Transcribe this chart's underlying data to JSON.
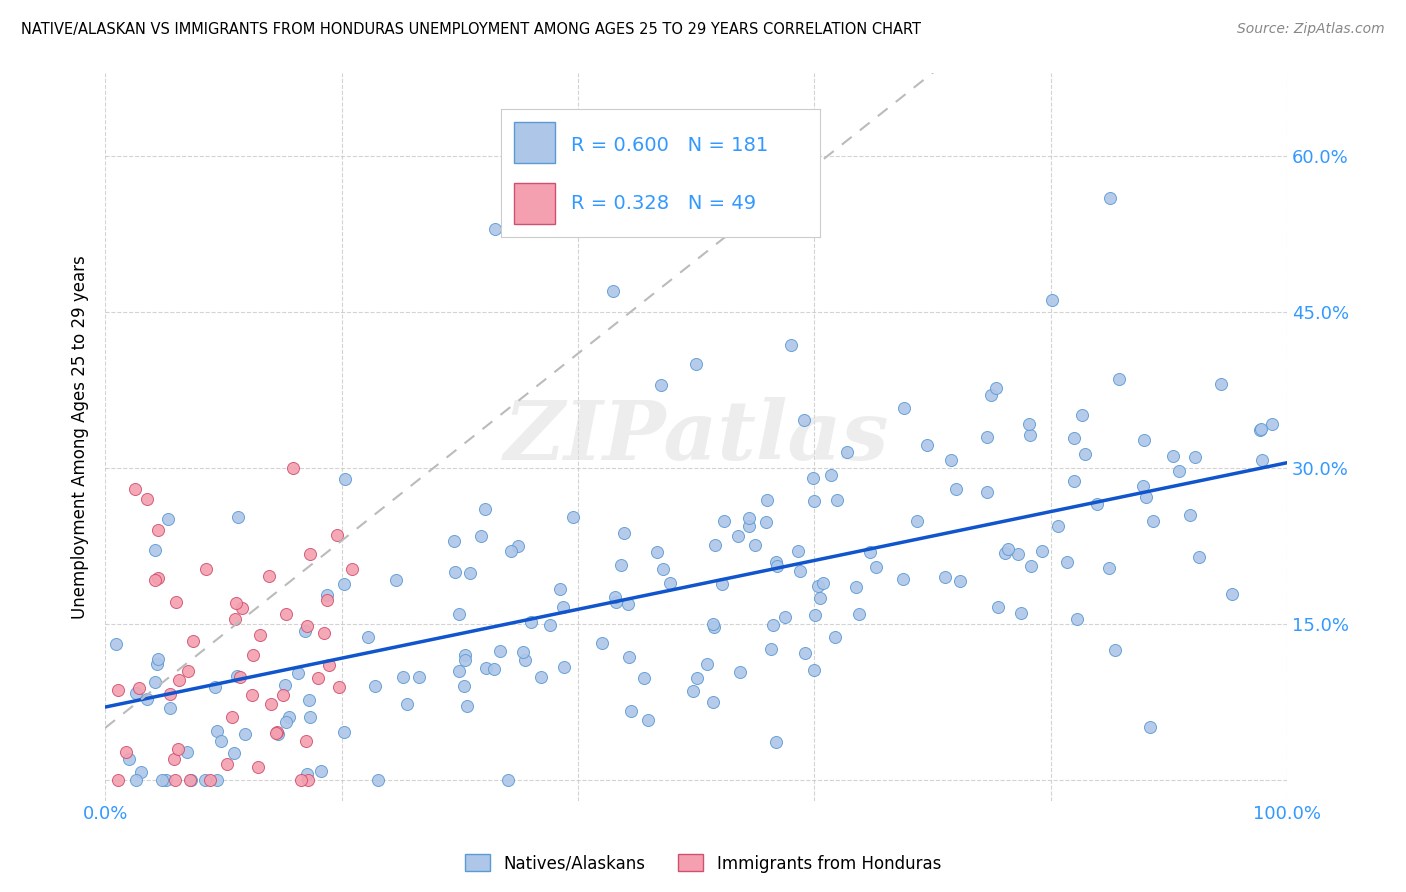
{
  "title": "NATIVE/ALASKAN VS IMMIGRANTS FROM HONDURAS UNEMPLOYMENT AMONG AGES 25 TO 29 YEARS CORRELATION CHART",
  "source": "Source: ZipAtlas.com",
  "ylabel": "Unemployment Among Ages 25 to 29 years",
  "xlim": [
    0,
    1.0
  ],
  "ylim": [
    -0.02,
    0.68
  ],
  "xticks": [
    0.0,
    0.2,
    0.4,
    0.6,
    0.8,
    1.0
  ],
  "xticklabels": [
    "0.0%",
    "",
    "",
    "",
    "",
    "100.0%"
  ],
  "yticks": [
    0.0,
    0.15,
    0.3,
    0.45,
    0.6
  ],
  "yticklabels": [
    "",
    "15.0%",
    "30.0%",
    "45.0%",
    "60.0%"
  ],
  "native_color": "#aec6e8",
  "native_edge_color": "#5b9bd5",
  "honduras_color": "#f4a0b0",
  "honduras_edge_color": "#d05070",
  "native_line_color": "#1155cc",
  "honduras_line_color": "#c06080",
  "native_R": 0.6,
  "native_N": 181,
  "honduras_R": 0.328,
  "honduras_N": 49,
  "watermark": "ZIPatlas",
  "background_color": "#ffffff",
  "grid_color": "#c8c8c8",
  "tick_color": "#3399ff",
  "legend_R_color": "#3399ff"
}
